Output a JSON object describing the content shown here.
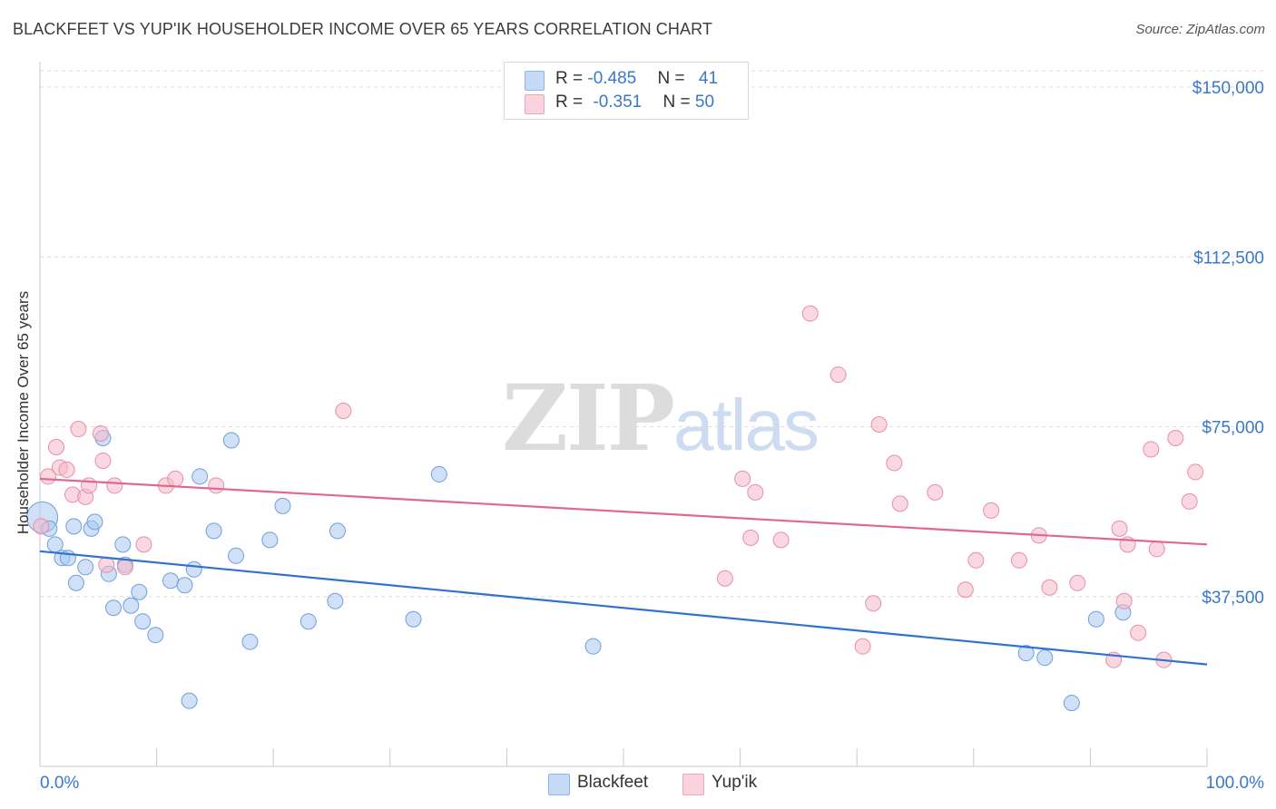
{
  "title": "BLACKFEET VS YUP'IK HOUSEHOLDER INCOME OVER 65 YEARS CORRELATION CHART",
  "source": "Source: ZipAtlas.com",
  "watermark": {
    "zip": "ZIP",
    "atlas": "atlas"
  },
  "legend": {
    "rows": [
      {
        "r_label": "R = ",
        "r_value": "-0.485",
        "n_label": "N = ",
        "n_value": "41",
        "color": "#a9c8f0"
      },
      {
        "r_label": "R = ",
        "r_value": "-0.351",
        "n_label": "N = ",
        "n_value": "50",
        "color": "#f6b8cb"
      }
    ]
  },
  "bottom_legend": [
    {
      "label": "Blackfeet",
      "color": "#a9c8f0"
    },
    {
      "label": "Yup'ik",
      "color": "#f6b8cb"
    }
  ],
  "chart_data": {
    "type": "scatter",
    "title": "BLACKFEET VS YUP'IK HOUSEHOLDER INCOME OVER 65 YEARS CORRELATION CHART",
    "xlabel": "",
    "ylabel": "Householder Income Over 65 years",
    "xlim": [
      0,
      100
    ],
    "ylim": [
      0,
      150000
    ],
    "x_tick_labels": [
      "0.0%",
      "100.0%"
    ],
    "y_ticks": [
      37500,
      75000,
      112500,
      150000
    ],
    "y_tick_labels": [
      "$37,500",
      "$75,000",
      "$112,500",
      "$150,000"
    ],
    "grid": "horizontal dashed",
    "legend_position": "top-center",
    "series": [
      {
        "name": "Blackfeet",
        "color": "#a9c8f0",
        "stroke": "#6f9fdc",
        "trend": {
          "x": [
            0,
            100
          ],
          "y": [
            47500,
            22500
          ],
          "color": "#2f72cf"
        },
        "points": [
          [
            0.2,
            55000,
            "large"
          ],
          [
            0.8,
            52500
          ],
          [
            1.3,
            49000
          ],
          [
            1.9,
            46000
          ],
          [
            2.4,
            46000
          ],
          [
            3.1,
            40500
          ],
          [
            2.9,
            53000
          ],
          [
            3.9,
            44000
          ],
          [
            4.4,
            52500
          ],
          [
            4.7,
            54000
          ],
          [
            5.4,
            72500
          ],
          [
            5.9,
            42500
          ],
          [
            6.3,
            35000
          ],
          [
            7.1,
            49000
          ],
          [
            7.3,
            44500
          ],
          [
            7.8,
            35500
          ],
          [
            8.5,
            38500
          ],
          [
            8.8,
            32000
          ],
          [
            9.9,
            29000
          ],
          [
            11.2,
            41000
          ],
          [
            12.4,
            40000
          ],
          [
            12.8,
            14500
          ],
          [
            13.2,
            43500
          ],
          [
            13.7,
            64000
          ],
          [
            14.9,
            52000
          ],
          [
            16.4,
            72000
          ],
          [
            16.8,
            46500
          ],
          [
            18.0,
            27500
          ],
          [
            19.7,
            50000
          ],
          [
            20.8,
            57500
          ],
          [
            23.0,
            32000
          ],
          [
            25.3,
            36500
          ],
          [
            25.5,
            52000
          ],
          [
            32.0,
            32500
          ],
          [
            34.2,
            64500
          ],
          [
            47.4,
            26500
          ],
          [
            84.5,
            25000
          ],
          [
            86.1,
            24000
          ],
          [
            88.4,
            14000
          ],
          [
            90.5,
            32500
          ],
          [
            92.8,
            34000
          ]
        ]
      },
      {
        "name": "Yup'ik",
        "color": "#f6b8cb",
        "stroke": "#e88ea8",
        "trend": {
          "x": [
            0,
            100
          ],
          "y": [
            63500,
            49000
          ],
          "color": "#e06890"
        },
        "points": [
          [
            0.1,
            53000
          ],
          [
            0.7,
            64000
          ],
          [
            1.4,
            70500
          ],
          [
            1.7,
            66000
          ],
          [
            2.3,
            65500
          ],
          [
            2.8,
            60000
          ],
          [
            3.3,
            74500
          ],
          [
            3.9,
            59500
          ],
          [
            4.2,
            62000
          ],
          [
            5.2,
            73500
          ],
          [
            5.4,
            67500
          ],
          [
            5.7,
            44500
          ],
          [
            6.4,
            62000
          ],
          [
            7.3,
            44000
          ],
          [
            8.9,
            49000
          ],
          [
            10.8,
            62000
          ],
          [
            11.6,
            63500
          ],
          [
            15.1,
            62000
          ],
          [
            26.0,
            78500
          ],
          [
            58.7,
            41500
          ],
          [
            60.2,
            63500
          ],
          [
            60.9,
            50500
          ],
          [
            61.3,
            60500
          ],
          [
            63.5,
            50000
          ],
          [
            66.0,
            100000
          ],
          [
            68.4,
            86500
          ],
          [
            70.5,
            26500
          ],
          [
            71.4,
            36000
          ],
          [
            71.9,
            75500
          ],
          [
            73.2,
            67000
          ],
          [
            73.7,
            58000
          ],
          [
            76.7,
            60500
          ],
          [
            79.3,
            39000
          ],
          [
            80.2,
            45500
          ],
          [
            81.5,
            56500
          ],
          [
            83.9,
            45500
          ],
          [
            85.6,
            51000
          ],
          [
            86.5,
            39500
          ],
          [
            88.9,
            40500
          ],
          [
            92.0,
            23500
          ],
          [
            92.5,
            52500
          ],
          [
            92.9,
            36500
          ],
          [
            93.2,
            49000
          ],
          [
            94.1,
            29500
          ],
          [
            95.2,
            70000
          ],
          [
            95.7,
            48000
          ],
          [
            96.3,
            23500
          ],
          [
            97.3,
            72500
          ],
          [
            98.5,
            58500
          ],
          [
            99.0,
            65000
          ]
        ]
      }
    ]
  }
}
